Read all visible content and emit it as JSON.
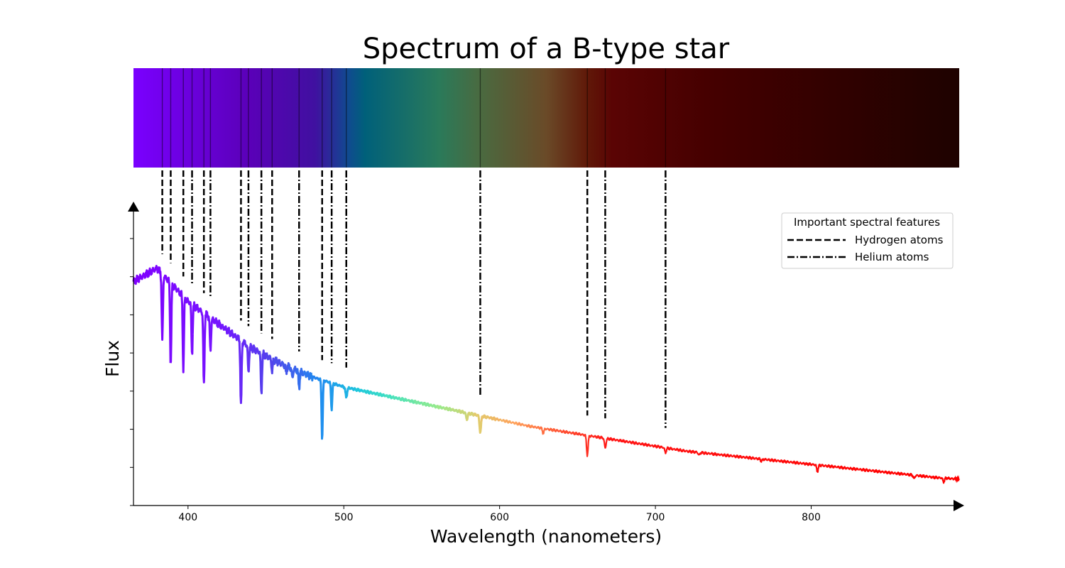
{
  "chart_data": {
    "type": "line",
    "title": "Spectrum of a B-type star",
    "xlabel": "Wavelength (nanometers)",
    "ylabel": "Flux",
    "xlim": [
      365,
      895
    ],
    "ylim": [
      0,
      1.0
    ],
    "x_ticks": [
      400,
      500,
      600,
      700,
      800
    ],
    "y_tick_labels_shown": false,
    "y_tick_count": 8,
    "legend": {
      "title": "Important spectral features",
      "position": "top-right",
      "entries": [
        {
          "label": "Hydrogen atoms",
          "style": "dashed"
        },
        {
          "label": "Helium atoms",
          "style": "dash-dot"
        }
      ]
    },
    "continuum": {
      "description_points_x": [
        365,
        380,
        400,
        420,
        440,
        460,
        480,
        500,
        520,
        540,
        560,
        580,
        600,
        620,
        640,
        660,
        680,
        700,
        720,
        740,
        760,
        780,
        800,
        820,
        840,
        860,
        880,
        895
      ],
      "description_points_y": [
        0.68,
        0.72,
        0.62,
        0.55,
        0.48,
        0.43,
        0.39,
        0.36,
        0.34,
        0.32,
        0.3,
        0.28,
        0.26,
        0.24,
        0.225,
        0.21,
        0.195,
        0.18,
        0.165,
        0.155,
        0.145,
        0.135,
        0.125,
        0.115,
        0.105,
        0.095,
        0.085,
        0.08
      ]
    },
    "absorption_lines": [
      {
        "wavelength": 383.5,
        "element": "Hydrogen",
        "depth": 0.2
      },
      {
        "wavelength": 388.9,
        "element": "Hydrogen",
        "depth": 0.25
      },
      {
        "wavelength": 397.0,
        "element": "Hydrogen",
        "depth": 0.22
      },
      {
        "wavelength": 402.6,
        "element": "Helium",
        "depth": 0.15
      },
      {
        "wavelength": 410.2,
        "element": "Hydrogen",
        "depth": 0.22
      },
      {
        "wavelength": 414.4,
        "element": "Helium",
        "depth": 0.1
      },
      {
        "wavelength": 434.0,
        "element": "Hydrogen",
        "depth": 0.2
      },
      {
        "wavelength": 438.8,
        "element": "Helium",
        "depth": 0.08
      },
      {
        "wavelength": 447.1,
        "element": "Helium",
        "depth": 0.12
      },
      {
        "wavelength": 454.0,
        "element": "Hydrogen",
        "depth": 0.04
      },
      {
        "wavelength": 471.3,
        "element": "Helium",
        "depth": 0.05
      },
      {
        "wavelength": 486.1,
        "element": "Hydrogen",
        "depth": 0.18
      },
      {
        "wavelength": 492.2,
        "element": "Helium",
        "depth": 0.08
      },
      {
        "wavelength": 501.6,
        "element": "Helium",
        "depth": 0.03
      },
      {
        "wavelength": 587.6,
        "element": "Helium",
        "depth": 0.05
      },
      {
        "wavelength": 656.3,
        "element": "Hydrogen",
        "depth": 0.06
      },
      {
        "wavelength": 667.8,
        "element": "Helium",
        "depth": 0.03
      },
      {
        "wavelength": 706.5,
        "element": "Helium",
        "depth": 0.015
      }
    ],
    "minor_dips": [
      {
        "wavelength": 463,
        "depth": 0.02
      },
      {
        "wavelength": 467,
        "depth": 0.03
      },
      {
        "wavelength": 579,
        "depth": 0.02
      },
      {
        "wavelength": 628,
        "depth": 0.015
      },
      {
        "wavelength": 728,
        "depth": 0.008
      },
      {
        "wavelength": 768,
        "depth": 0.006
      },
      {
        "wavelength": 804,
        "depth": 0.02
      },
      {
        "wavelength": 866,
        "depth": 0.01
      },
      {
        "wavelength": 885,
        "depth": 0.012
      }
    ]
  }
}
